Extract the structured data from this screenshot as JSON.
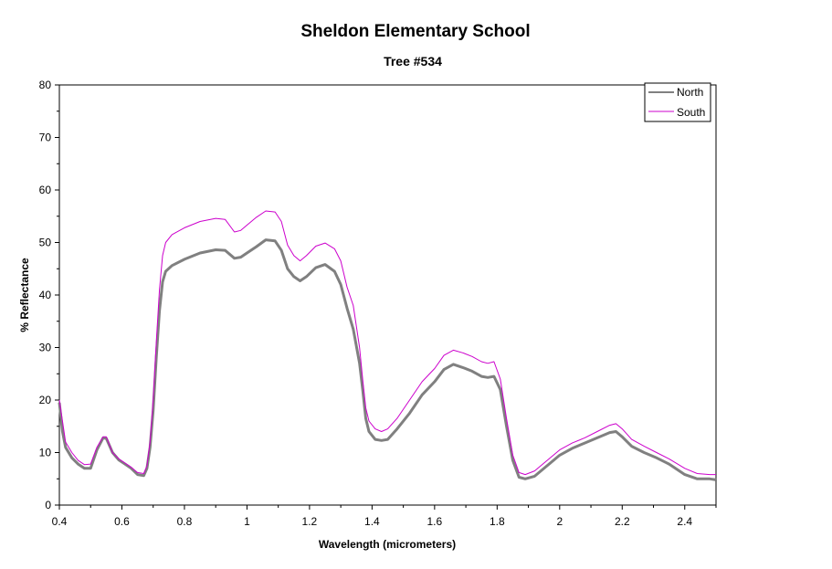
{
  "chart_data": {
    "type": "line",
    "title": "Sheldon Elementary School",
    "subtitle": "Tree #534",
    "xlabel": "Wavelength (micrometers)",
    "ylabel": "% Reflectance",
    "xlim": [
      0.4,
      2.5
    ],
    "ylim": [
      0,
      80
    ],
    "x_ticks": [
      "0.4",
      "0.6",
      "0.8",
      "1",
      "1.2",
      "1.4",
      "1.6",
      "1.8",
      "2",
      "2.2",
      "2.4"
    ],
    "y_ticks": [
      "0",
      "10",
      "20",
      "30",
      "40",
      "50",
      "60",
      "70",
      "80"
    ],
    "grid": false,
    "legend_position": "top-right",
    "series": [
      {
        "name": "North",
        "color": "#808080",
        "points": [
          [
            0.4,
            19.5
          ],
          [
            0.41,
            14.0
          ],
          [
            0.42,
            11.0
          ],
          [
            0.44,
            9.0
          ],
          [
            0.46,
            7.8
          ],
          [
            0.48,
            7.0
          ],
          [
            0.5,
            7.0
          ],
          [
            0.52,
            10.5
          ],
          [
            0.54,
            12.8
          ],
          [
            0.55,
            12.7
          ],
          [
            0.57,
            10.0
          ],
          [
            0.59,
            8.6
          ],
          [
            0.61,
            7.8
          ],
          [
            0.63,
            7.0
          ],
          [
            0.65,
            5.8
          ],
          [
            0.67,
            5.6
          ],
          [
            0.68,
            7.0
          ],
          [
            0.69,
            11.0
          ],
          [
            0.7,
            18.0
          ],
          [
            0.71,
            28.0
          ],
          [
            0.72,
            37.0
          ],
          [
            0.73,
            42.5
          ],
          [
            0.74,
            44.5
          ],
          [
            0.76,
            45.6
          ],
          [
            0.8,
            46.8
          ],
          [
            0.85,
            48.0
          ],
          [
            0.9,
            48.6
          ],
          [
            0.93,
            48.5
          ],
          [
            0.96,
            47.0
          ],
          [
            0.98,
            47.2
          ],
          [
            1.0,
            48.0
          ],
          [
            1.03,
            49.2
          ],
          [
            1.06,
            50.5
          ],
          [
            1.09,
            50.3
          ],
          [
            1.11,
            48.5
          ],
          [
            1.13,
            45.0
          ],
          [
            1.15,
            43.5
          ],
          [
            1.17,
            42.7
          ],
          [
            1.19,
            43.5
          ],
          [
            1.22,
            45.2
          ],
          [
            1.25,
            45.8
          ],
          [
            1.28,
            44.5
          ],
          [
            1.3,
            42.0
          ],
          [
            1.32,
            37.5
          ],
          [
            1.34,
            33.5
          ],
          [
            1.36,
            27.0
          ],
          [
            1.37,
            22.0
          ],
          [
            1.38,
            16.5
          ],
          [
            1.39,
            14.0
          ],
          [
            1.41,
            12.5
          ],
          [
            1.43,
            12.3
          ],
          [
            1.45,
            12.5
          ],
          [
            1.48,
            14.5
          ],
          [
            1.52,
            17.5
          ],
          [
            1.56,
            21.0
          ],
          [
            1.6,
            23.5
          ],
          [
            1.63,
            25.8
          ],
          [
            1.66,
            26.8
          ],
          [
            1.69,
            26.2
          ],
          [
            1.72,
            25.5
          ],
          [
            1.75,
            24.5
          ],
          [
            1.77,
            24.3
          ],
          [
            1.79,
            24.5
          ],
          [
            1.81,
            22.0
          ],
          [
            1.83,
            15.0
          ],
          [
            1.85,
            8.5
          ],
          [
            1.87,
            5.3
          ],
          [
            1.89,
            5.0
          ],
          [
            1.92,
            5.5
          ],
          [
            1.96,
            7.5
          ],
          [
            2.0,
            9.5
          ],
          [
            2.04,
            10.8
          ],
          [
            2.08,
            11.8
          ],
          [
            2.12,
            12.8
          ],
          [
            2.16,
            13.8
          ],
          [
            2.18,
            14.0
          ],
          [
            2.2,
            13.0
          ],
          [
            2.23,
            11.2
          ],
          [
            2.27,
            10.0
          ],
          [
            2.31,
            9.0
          ],
          [
            2.35,
            7.8
          ],
          [
            2.4,
            5.8
          ],
          [
            2.44,
            5.0
          ],
          [
            2.48,
            5.0
          ],
          [
            2.5,
            4.8
          ]
        ]
      },
      {
        "name": "South",
        "color": "#cc00cc",
        "points": [
          [
            0.4,
            20.0
          ],
          [
            0.41,
            16.0
          ],
          [
            0.42,
            12.0
          ],
          [
            0.44,
            10.0
          ],
          [
            0.46,
            8.5
          ],
          [
            0.48,
            7.7
          ],
          [
            0.5,
            7.8
          ],
          [
            0.52,
            11.0
          ],
          [
            0.54,
            13.0
          ],
          [
            0.55,
            13.0
          ],
          [
            0.57,
            10.0
          ],
          [
            0.59,
            8.8
          ],
          [
            0.61,
            8.0
          ],
          [
            0.63,
            7.2
          ],
          [
            0.65,
            6.2
          ],
          [
            0.67,
            6.0
          ],
          [
            0.68,
            7.5
          ],
          [
            0.69,
            12.0
          ],
          [
            0.7,
            20.0
          ],
          [
            0.71,
            31.0
          ],
          [
            0.72,
            41.0
          ],
          [
            0.73,
            47.5
          ],
          [
            0.74,
            50.0
          ],
          [
            0.76,
            51.5
          ],
          [
            0.8,
            52.8
          ],
          [
            0.85,
            54.0
          ],
          [
            0.9,
            54.6
          ],
          [
            0.93,
            54.4
          ],
          [
            0.96,
            52.0
          ],
          [
            0.98,
            52.3
          ],
          [
            1.0,
            53.3
          ],
          [
            1.03,
            54.8
          ],
          [
            1.06,
            56.0
          ],
          [
            1.09,
            55.8
          ],
          [
            1.11,
            54.0
          ],
          [
            1.13,
            49.5
          ],
          [
            1.15,
            47.5
          ],
          [
            1.17,
            46.5
          ],
          [
            1.19,
            47.5
          ],
          [
            1.22,
            49.3
          ],
          [
            1.25,
            49.9
          ],
          [
            1.28,
            48.8
          ],
          [
            1.3,
            46.5
          ],
          [
            1.32,
            41.5
          ],
          [
            1.34,
            38.0
          ],
          [
            1.36,
            30.0
          ],
          [
            1.37,
            24.0
          ],
          [
            1.38,
            18.5
          ],
          [
            1.39,
            16.0
          ],
          [
            1.41,
            14.5
          ],
          [
            1.43,
            14.0
          ],
          [
            1.45,
            14.5
          ],
          [
            1.48,
            16.5
          ],
          [
            1.52,
            20.0
          ],
          [
            1.56,
            23.5
          ],
          [
            1.6,
            26.0
          ],
          [
            1.63,
            28.5
          ],
          [
            1.66,
            29.5
          ],
          [
            1.69,
            29.0
          ],
          [
            1.72,
            28.3
          ],
          [
            1.75,
            27.3
          ],
          [
            1.77,
            27.0
          ],
          [
            1.79,
            27.3
          ],
          [
            1.81,
            24.0
          ],
          [
            1.83,
            16.5
          ],
          [
            1.85,
            9.5
          ],
          [
            1.87,
            6.2
          ],
          [
            1.89,
            5.8
          ],
          [
            1.92,
            6.5
          ],
          [
            1.96,
            8.5
          ],
          [
            2.0,
            10.5
          ],
          [
            2.04,
            11.8
          ],
          [
            2.08,
            12.8
          ],
          [
            2.12,
            14.0
          ],
          [
            2.16,
            15.2
          ],
          [
            2.18,
            15.5
          ],
          [
            2.2,
            14.5
          ],
          [
            2.23,
            12.5
          ],
          [
            2.27,
            11.2
          ],
          [
            2.31,
            10.0
          ],
          [
            2.35,
            8.8
          ],
          [
            2.4,
            7.0
          ],
          [
            2.44,
            6.0
          ],
          [
            2.48,
            5.8
          ],
          [
            2.5,
            5.8
          ]
        ]
      }
    ]
  }
}
